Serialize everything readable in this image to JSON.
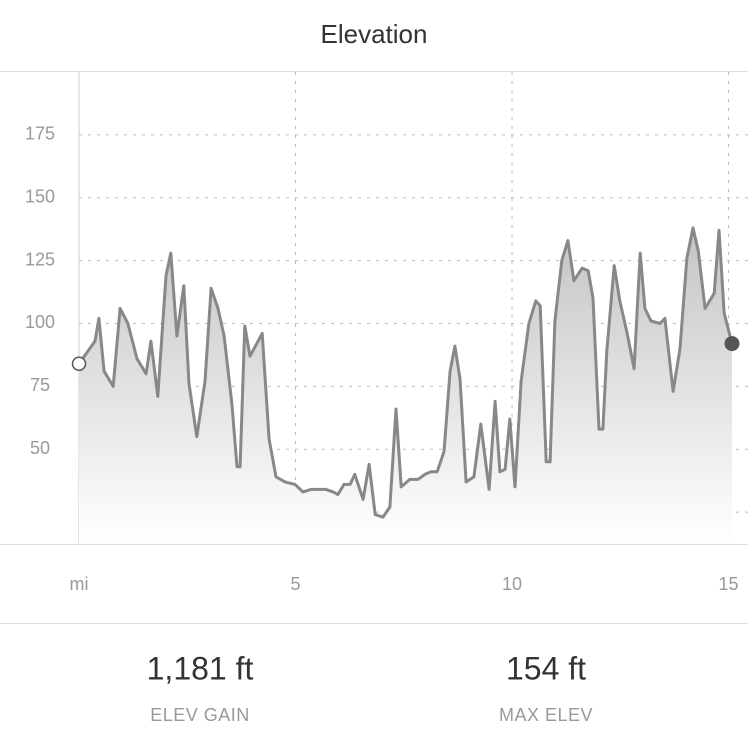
{
  "chart_data": {
    "type": "area",
    "title": "Elevation",
    "x": [
      0,
      0.37,
      0.46,
      0.58,
      0.79,
      0.95,
      1.13,
      1.34,
      1.55,
      1.66,
      1.82,
      2.01,
      2.12,
      2.26,
      2.42,
      2.54,
      2.72,
      2.91,
      3.05,
      3.21,
      3.35,
      3.53,
      3.65,
      3.72,
      3.83,
      3.95,
      4.23,
      4.39,
      4.55,
      4.76,
      4.99,
      5.17,
      5.36,
      5.52,
      5.7,
      5.87,
      5.98,
      6.12,
      6.26,
      6.37,
      6.56,
      6.7,
      6.84,
      7.02,
      7.18,
      7.32,
      7.44,
      7.64,
      7.83,
      7.99,
      8.13,
      8.27,
      8.43,
      8.57,
      8.68,
      8.8,
      8.94,
      9.12,
      9.28,
      9.47,
      9.61,
      9.72,
      9.84,
      9.95,
      10.07,
      10.21,
      10.39,
      10.55,
      10.65,
      10.79,
      10.88,
      10.99,
      11.15,
      11.29,
      11.43,
      11.62,
      11.76,
      11.87,
      12.01,
      12.1,
      12.19,
      12.36,
      12.49,
      12.66,
      12.82,
      12.96,
      13.07,
      13.21,
      13.42,
      13.53,
      13.72,
      13.88,
      14.04,
      14.18,
      14.3,
      14.46,
      14.67,
      14.78,
      14.9,
      15.08
    ],
    "values": [
      84,
      93,
      102,
      81,
      75,
      106,
      100,
      86,
      80,
      93,
      71,
      119,
      128,
      95,
      115,
      76,
      55,
      77,
      114,
      106,
      95,
      68,
      43,
      43,
      99,
      87,
      96,
      54,
      39,
      37,
      36,
      33,
      34,
      34,
      34,
      33,
      32,
      36,
      36,
      40,
      30,
      44,
      24,
      23,
      27,
      66,
      35,
      38,
      38,
      40,
      41,
      41,
      49,
      81,
      91,
      78,
      37,
      39,
      60,
      34,
      69,
      41,
      42,
      62,
      35,
      77,
      100,
      109,
      107,
      45,
      45,
      101,
      125,
      133,
      117,
      122,
      121,
      110,
      58,
      58,
      89,
      123,
      109,
      96,
      82,
      128,
      106,
      101,
      100,
      102,
      73,
      90,
      126,
      138,
      129,
      106,
      112,
      137,
      104,
      92
    ],
    "color": "#888888",
    "xlim": [
      0,
      15.45
    ],
    "ylim": [
      12.3,
      200
    ],
    "xticks": [
      {
        "value": 0,
        "label": "mi"
      },
      5,
      10,
      15
    ],
    "yticks": [
      50,
      75,
      100,
      125,
      150,
      175
    ],
    "minor_yticks": [
      25
    ],
    "grid": true
  },
  "stats": [
    {
      "value": "1,181 ft",
      "label": "ELEV GAIN"
    },
    {
      "value": "154 ft",
      "label": "MAX ELEV"
    }
  ]
}
